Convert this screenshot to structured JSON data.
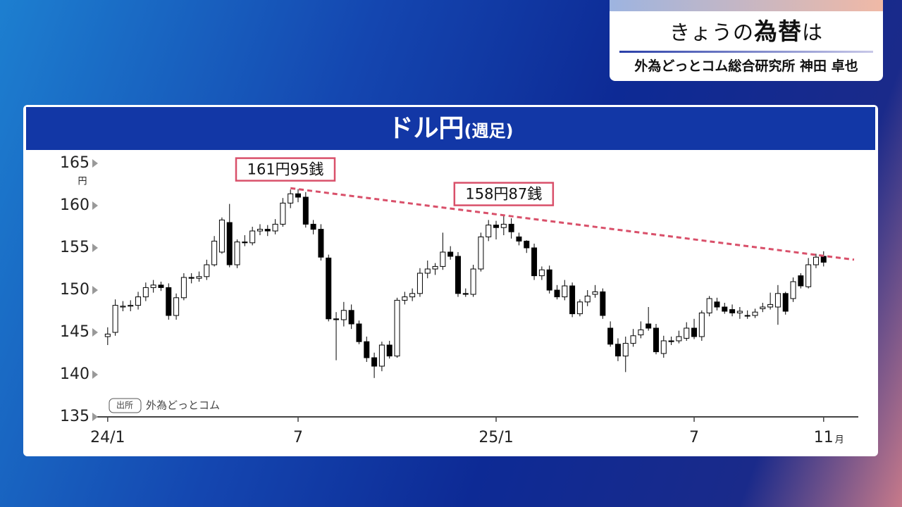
{
  "header": {
    "title_pre": "きょうの",
    "title_bold": "為替",
    "title_post": "は",
    "speaker": "外為どっとコム総合研究所 神田 卓也"
  },
  "chart_data": {
    "type": "candlestick",
    "title": "ドル円",
    "subtitle": "(週足)",
    "y_unit": "円",
    "x_unit": "月",
    "source_badge": "出所",
    "source": "外為どっとコム",
    "open": [
      144.5,
      145.0,
      148.0,
      148.1,
      148.2,
      149.2,
      150.3,
      150.6,
      150.3,
      147.0,
      149.1,
      151.5,
      151.4,
      151.6,
      153.0,
      154.5,
      158.0,
      153.0,
      155.7,
      155.6,
      157.0,
      157.2,
      157.0,
      157.8,
      160.3,
      161.4,
      161.0,
      157.8,
      157.2,
      153.8,
      146.6,
      146.5,
      147.6,
      146.0,
      143.9,
      142.0,
      141.0,
      143.5,
      142.2,
      148.8,
      149.2,
      149.6,
      152.0,
      152.5,
      152.8,
      154.5,
      154.0,
      149.6,
      149.5,
      152.5,
      156.3,
      157.7,
      157.4,
      157.8,
      156.3,
      155.8,
      155.0,
      151.7,
      152.4,
      150.0,
      149.2,
      150.5,
      147.2,
      148.6,
      149.5,
      149.8,
      145.5,
      143.6,
      142.2,
      143.7,
      144.7,
      146.0,
      145.5,
      142.5,
      144.0,
      144.0,
      144.3,
      145.5,
      144.5,
      147.3,
      148.6,
      148.0,
      147.7,
      147.3,
      147.0,
      147.0,
      147.8,
      148.0,
      148.0,
      149.6,
      149.0,
      151.7,
      150.4,
      153.0,
      154.0
    ],
    "high": [
      145.6,
      148.9,
      148.7,
      148.8,
      149.8,
      150.9,
      151.2,
      151.0,
      150.8,
      149.6,
      152.0,
      152.0,
      152.2,
      153.6,
      156.4,
      158.6,
      160.2,
      156.0,
      156.5,
      157.5,
      157.8,
      157.7,
      158.4,
      160.9,
      161.9,
      161.95,
      161.6,
      158.3,
      157.8,
      154.2,
      147.4,
      148.6,
      148.3,
      146.4,
      144.5,
      142.6,
      143.9,
      144.0,
      149.1,
      149.8,
      150.2,
      152.6,
      153.5,
      153.2,
      156.8,
      155.2,
      154.5,
      150.2,
      153.0,
      156.8,
      158.3,
      158.2,
      158.87,
      158.5,
      156.8,
      155.9,
      155.5,
      152.8,
      152.9,
      150.6,
      151.2,
      150.9,
      148.9,
      150.0,
      150.6,
      150.2,
      146.3,
      144.3,
      144.5,
      145.4,
      146.3,
      148.0,
      146.0,
      144.6,
      144.5,
      145.2,
      146.2,
      146.6,
      147.6,
      149.3,
      149.1,
      148.5,
      148.3,
      148.0,
      147.6,
      147.8,
      148.5,
      149.7,
      150.6,
      149.8,
      151.5,
      152.0,
      153.8,
      154.3,
      154.6
    ],
    "low": [
      143.5,
      144.6,
      147.5,
      147.5,
      147.7,
      148.7,
      149.7,
      149.9,
      146.5,
      146.5,
      148.8,
      150.8,
      151.0,
      151.2,
      152.8,
      154.3,
      152.7,
      152.6,
      155.2,
      155.3,
      156.5,
      156.4,
      156.6,
      157.5,
      159.7,
      160.4,
      157.4,
      156.6,
      153.5,
      146.3,
      141.7,
      145.7,
      145.4,
      143.6,
      141.5,
      139.6,
      140.4,
      141.9,
      142.0,
      148.3,
      148.7,
      149.2,
      151.4,
      151.8,
      152.4,
      153.6,
      149.2,
      149.2,
      149.2,
      152.2,
      155.8,
      156.0,
      156.5,
      156.1,
      155.3,
      154.4,
      151.2,
      151.2,
      149.6,
      148.9,
      148.8,
      146.8,
      146.9,
      148.1,
      149.1,
      146.6,
      143.3,
      141.6,
      140.3,
      143.3,
      144.3,
      145.2,
      142.4,
      142.0,
      143.5,
      143.7,
      144.0,
      144.2,
      144.0,
      146.9,
      147.6,
      147.2,
      146.9,
      146.6,
      146.6,
      146.7,
      147.4,
      147.7,
      145.9,
      147.1,
      148.6,
      150.2,
      150.2,
      152.6,
      152.8
    ],
    "close": [
      144.8,
      148.2,
      148.1,
      148.2,
      149.2,
      150.3,
      150.6,
      150.3,
      147.0,
      149.1,
      151.5,
      151.4,
      151.6,
      153.0,
      155.8,
      158.3,
      153.0,
      155.7,
      155.6,
      157.0,
      157.2,
      157.0,
      157.8,
      160.3,
      161.4,
      161.0,
      157.8,
      157.2,
      153.9,
      146.6,
      146.5,
      147.6,
      146.0,
      143.9,
      142.0,
      141.0,
      143.5,
      142.2,
      148.8,
      149.2,
      149.6,
      152.0,
      152.5,
      152.8,
      154.5,
      154.0,
      149.6,
      149.5,
      152.5,
      156.3,
      157.7,
      157.4,
      157.8,
      156.9,
      155.8,
      155.0,
      151.7,
      152.4,
      150.0,
      149.2,
      150.5,
      147.2,
      148.6,
      149.3,
      149.8,
      147.0,
      143.6,
      142.2,
      143.7,
      144.6,
      145.3,
      145.5,
      142.7,
      144.0,
      143.9,
      144.5,
      145.5,
      144.5,
      147.3,
      149.0,
      148.0,
      147.5,
      147.3,
      147.5,
      147.0,
      147.4,
      148.0,
      148.3,
      149.6,
      147.5,
      151.0,
      150.5,
      153.0,
      153.9,
      153.3
    ],
    "up_color": "#ffffff",
    "down_color": "#000000",
    "xlim": [
      -1,
      98
    ],
    "ylim": [
      135,
      165
    ],
    "yticks": [
      135,
      140,
      145,
      150,
      155,
      160,
      165
    ],
    "xticks": [
      {
        "value": 0,
        "label": "24/1"
      },
      {
        "value": 25,
        "label": "7"
      },
      {
        "value": 51,
        "label": "25/1"
      },
      {
        "value": 77,
        "label": "7"
      },
      {
        "value": 94,
        "label": "11"
      }
    ],
    "trendline": {
      "x": [
        24,
        98
      ],
      "y": [
        162.06,
        153.6
      ],
      "color": "#d9506a"
    },
    "annotations": [
      {
        "label": "161円95銭",
        "x": 25,
        "value": 161.95
      },
      {
        "label": "158円87銭",
        "x": 52,
        "value": 158.87
      }
    ]
  }
}
